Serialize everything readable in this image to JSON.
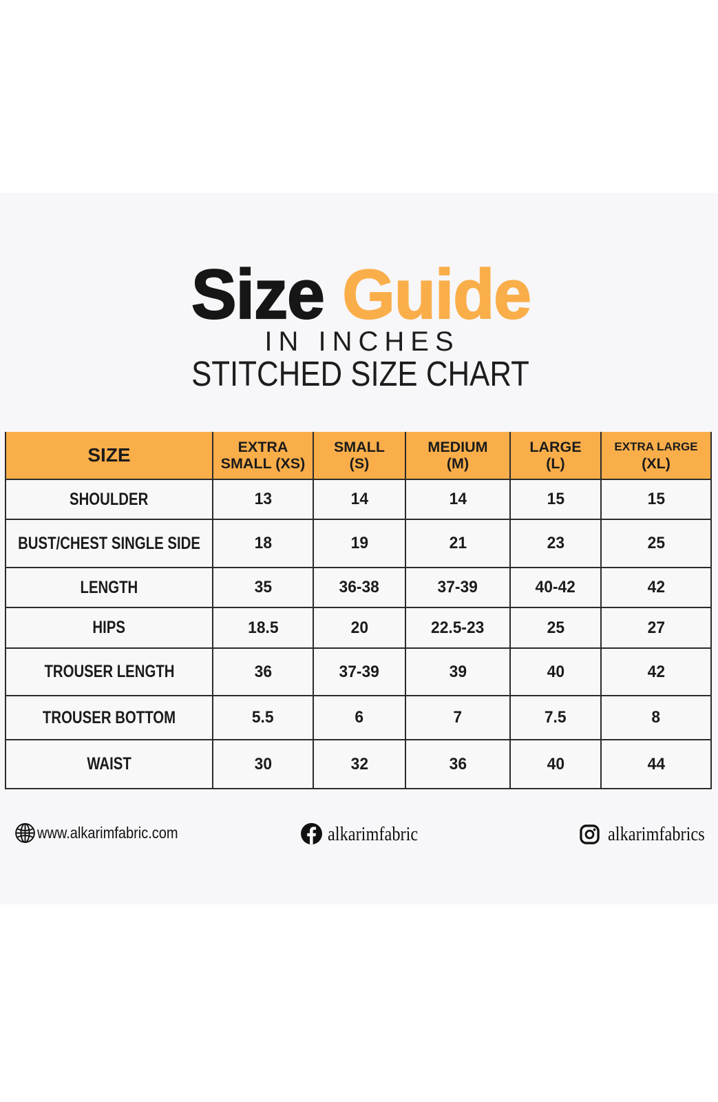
{
  "page": {
    "background": "#ffffff",
    "band_background": "#f7f7f9"
  },
  "colors": {
    "accent_orange": "#faae4a",
    "text_black": "#1b1b1b",
    "table_border": "#2b2b2b",
    "cell_background": "#f8f8f9"
  },
  "title": {
    "text": "Size Guide",
    "word_primary": "Size",
    "word_accent": "Guide",
    "line_units": "IN INCHES",
    "line_subtitle": "STITCHED SIZE CHART"
  },
  "chart_data": {
    "type": "table",
    "title": "Size Guide",
    "units": "inches",
    "columns": [
      "SIZE",
      "EXTRA SMALL (XS)",
      "SMALL (S)",
      "MEDIUM (M)",
      "LARGE (L)",
      "EXTRA LARGE (XL)"
    ],
    "header": {
      "size_label": "SIZE",
      "size_columns": [
        {
          "line1": "EXTRA",
          "line2": "SMALL (XS)"
        },
        {
          "line1": "SMALL",
          "line2": "(S)"
        },
        {
          "line1": "MEDIUM",
          "line2": "(M)"
        },
        {
          "line1": "LARGE",
          "line2": "(L)"
        },
        {
          "line1": "EXTRA LARGE",
          "line2": "(XL)"
        }
      ]
    },
    "rows": [
      {
        "label": "SHOULDER",
        "values": [
          "13",
          "14",
          "14",
          "15",
          "15"
        ]
      },
      {
        "label": "BUST/CHEST SINGLE SIDE",
        "values": [
          "18",
          "19",
          "21",
          "23",
          "25"
        ]
      },
      {
        "label": "LENGTH",
        "values": [
          "35",
          "36-38",
          "37-39",
          "40-42",
          "42"
        ]
      },
      {
        "label": "HIPS",
        "values": [
          "18.5",
          "20",
          "22.5-23",
          "25",
          "27"
        ]
      },
      {
        "label": "TROUSER LENGTH",
        "values": [
          "36",
          "37-39",
          "39",
          "40",
          "42"
        ]
      },
      {
        "label": "TROUSER BOTTOM",
        "values": [
          "5.5",
          "6",
          "7",
          "7.5",
          "8"
        ]
      },
      {
        "label": "WAIST",
        "values": [
          "30",
          "32",
          "36",
          "40",
          "44"
        ]
      }
    ]
  },
  "footer": {
    "website": {
      "icon": "globe-icon",
      "text": "www.alkarimfabric.com"
    },
    "facebook": {
      "icon": "facebook-icon",
      "text": "alkarimfabric"
    },
    "instagram": {
      "icon": "instagram-icon",
      "text": "alkarimfabrics"
    }
  }
}
